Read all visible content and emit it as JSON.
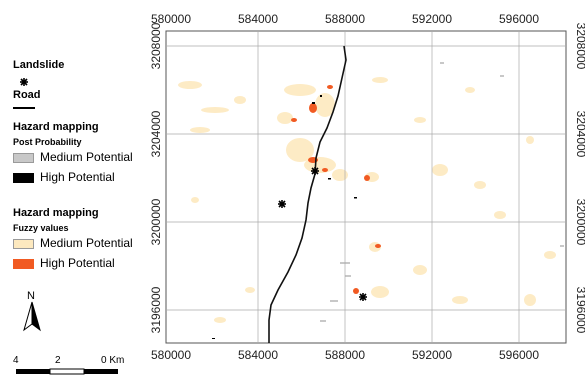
{
  "legend": {
    "landslide": "Landslide",
    "road": "Road",
    "hazard_post_title": "Hazard mapping",
    "hazard_post_sub": "Post Probability",
    "post_items": [
      {
        "label": "Medium Potential",
        "color": "#c8c8c8"
      },
      {
        "label": "High Potential",
        "color": "#000000"
      }
    ],
    "hazard_fuzzy_title": "Hazard mapping",
    "hazard_fuzzy_sub": "Fuzzy values",
    "fuzzy_items": [
      {
        "label": "Medium Potential",
        "color": "#fde9bf"
      },
      {
        "label": "High Potential",
        "color": "#f15a22"
      }
    ]
  },
  "north_arrow": {
    "label": "N"
  },
  "scale_bar": {
    "labels": [
      "4",
      "2",
      "0 Km"
    ]
  },
  "axes": {
    "x_ticks": [
      "580000",
      "584000",
      "588000",
      "592000",
      "596000"
    ],
    "y_ticks": [
      "3208000",
      "3204000",
      "3200000",
      "3196000"
    ]
  },
  "icons": {
    "landslide": "asterisk-icon",
    "north": "north-arrow-icon"
  }
}
